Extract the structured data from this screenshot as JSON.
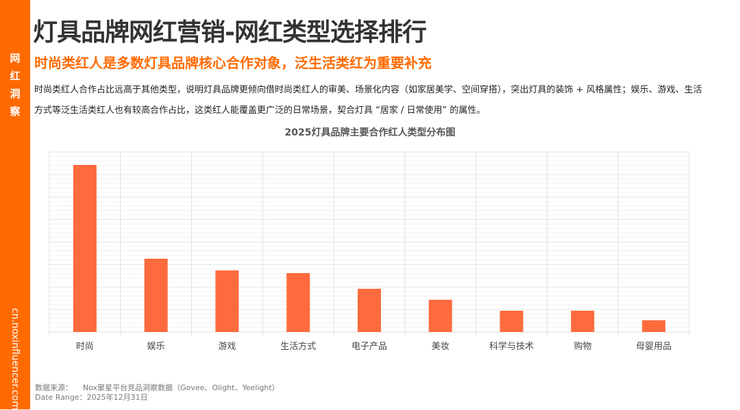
{
  "sidebar": {
    "title_chars": [
      "网",
      "红",
      "洞",
      "察"
    ],
    "url": "cn.noxinfluencer.com",
    "color": "#ff6a00"
  },
  "header": {
    "title": "灯具品牌网红营销-网红类型选择排行",
    "subtitle": "时尚类红人是多数灯具品牌核心合作对象，泛生活类红为重要补充",
    "description": "时尚类红人合作占比远高于其他类型，说明灯具品牌更倾向借时尚类红人的审美、场景化内容（如家居美学、空间穿搭），突出灯具的装饰 + 风格属性；娱乐、游戏、生活方式等泛生活类红人也有较高合作占比，这类红人能覆盖更广泛的日常场景，契合灯具 “居家 / 日常使用” 的属性。"
  },
  "chart_data": {
    "type": "bar",
    "title": "2025灯具品牌主要合作红人类型分布图",
    "categories": [
      "时尚",
      "娱乐",
      "游戏",
      "生活方式",
      "电子产品",
      "美妆",
      "科学与技术",
      "购物",
      "母婴用品"
    ],
    "values": [
      92.8,
      40.7,
      34.2,
      32.7,
      24.0,
      17.9,
      11.8,
      11.8,
      6.5
    ],
    "ylim": [
      0,
      100
    ],
    "xlabel": "",
    "ylabel": "",
    "grid": true,
    "bar_color": "#ff6b3d"
  },
  "footer": {
    "source_label": "数据来源：",
    "source_value": "Nox聚星平台竞品洞察数据（Govee、Olight、Yeelight）",
    "date_label": "Date Range：",
    "date_value": "2025年12月31日"
  }
}
